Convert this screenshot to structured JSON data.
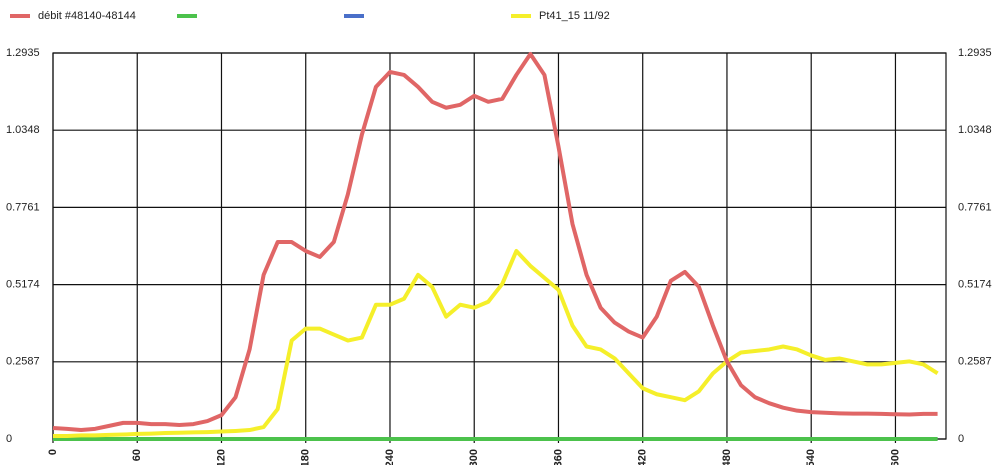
{
  "chart_data": {
    "type": "line",
    "x": [
      0,
      10,
      20,
      30,
      40,
      50,
      60,
      70,
      80,
      90,
      100,
      110,
      120,
      130,
      140,
      150,
      160,
      170,
      180,
      190,
      200,
      210,
      220,
      230,
      240,
      250,
      260,
      270,
      280,
      290,
      300,
      310,
      320,
      330,
      340,
      350,
      360,
      370,
      380,
      390,
      400,
      410,
      420,
      430,
      440,
      450,
      460,
      470,
      480,
      490,
      500,
      510,
      520,
      530,
      540,
      550,
      560,
      570,
      580,
      590,
      600,
      610,
      620,
      630
    ],
    "series": [
      {
        "name": "débit #48140-48144",
        "color": "#e06666",
        "values": [
          0.037,
          0.034,
          0.03,
          0.034,
          0.044,
          0.054,
          0.054,
          0.05,
          0.05,
          0.047,
          0.05,
          0.06,
          0.08,
          0.14,
          0.3,
          0.55,
          0.66,
          0.66,
          0.63,
          0.61,
          0.66,
          0.82,
          1.02,
          1.18,
          1.23,
          1.22,
          1.18,
          1.13,
          1.11,
          1.12,
          1.15,
          1.13,
          1.14,
          1.22,
          1.29,
          1.22,
          0.98,
          0.72,
          0.55,
          0.44,
          0.39,
          0.36,
          0.34,
          0.41,
          0.53,
          0.56,
          0.51,
          0.38,
          0.26,
          0.18,
          0.14,
          0.12,
          0.105,
          0.095,
          0.09,
          0.088,
          0.086,
          0.085,
          0.085,
          0.084,
          0.083,
          0.082,
          0.084,
          0.084
        ]
      },
      {
        "name": null,
        "color": "#4cc24c",
        "values": [
          0,
          0,
          0,
          0,
          0,
          0,
          0,
          0,
          0,
          0,
          0,
          0,
          0,
          0,
          0,
          0,
          0,
          0,
          0,
          0,
          0,
          0,
          0,
          0,
          0,
          0,
          0,
          0,
          0,
          0,
          0,
          0,
          0,
          0,
          0,
          0,
          0,
          0,
          0,
          0,
          0,
          0,
          0,
          0,
          0,
          0,
          0,
          0,
          0,
          0,
          0,
          0,
          0,
          0,
          0,
          0,
          0,
          0,
          0,
          0,
          0,
          0,
          0,
          0
        ]
      },
      {
        "name": null,
        "color": "#4a6fc9",
        "values": [
          0,
          0,
          0,
          0,
          0,
          0,
          0,
          0,
          0,
          0,
          0,
          0,
          0,
          0,
          0,
          0,
          0,
          0,
          0,
          0,
          0,
          0,
          0,
          0,
          0,
          0,
          0,
          0,
          0,
          0,
          0,
          0,
          0,
          0,
          0,
          0,
          0,
          0,
          0,
          0,
          0,
          0,
          0,
          0,
          0,
          0,
          0,
          0,
          0,
          0,
          0,
          0,
          0,
          0,
          0,
          0,
          0,
          0,
          0,
          0,
          0,
          0,
          0,
          0
        ]
      },
      {
        "name": "Pt41_15 11/92",
        "color": "#f5ef2a",
        "values": [
          0.01,
          0.01,
          0.012,
          0.012,
          0.014,
          0.015,
          0.017,
          0.018,
          0.02,
          0.021,
          0.022,
          0.023,
          0.025,
          0.027,
          0.03,
          0.04,
          0.1,
          0.33,
          0.37,
          0.37,
          0.35,
          0.33,
          0.34,
          0.45,
          0.45,
          0.47,
          0.55,
          0.51,
          0.41,
          0.45,
          0.44,
          0.46,
          0.52,
          0.63,
          0.58,
          0.54,
          0.5,
          0.38,
          0.31,
          0.3,
          0.27,
          0.22,
          0.17,
          0.15,
          0.14,
          0.13,
          0.16,
          0.22,
          0.26,
          0.29,
          0.295,
          0.3,
          0.31,
          0.3,
          0.28,
          0.265,
          0.27,
          0.26,
          0.25,
          0.25,
          0.255,
          0.26,
          0.25,
          0.22
        ]
      }
    ],
    "xlim": [
      0,
      636
    ],
    "xticks": [
      0,
      60,
      120,
      180,
      240,
      300,
      360,
      420,
      480,
      540,
      600
    ],
    "ylim": [
      0,
      1.2935
    ],
    "yticks": [
      0,
      0.2587,
      0.5174,
      0.7761,
      1.0348,
      1.2935
    ],
    "grid": true
  }
}
